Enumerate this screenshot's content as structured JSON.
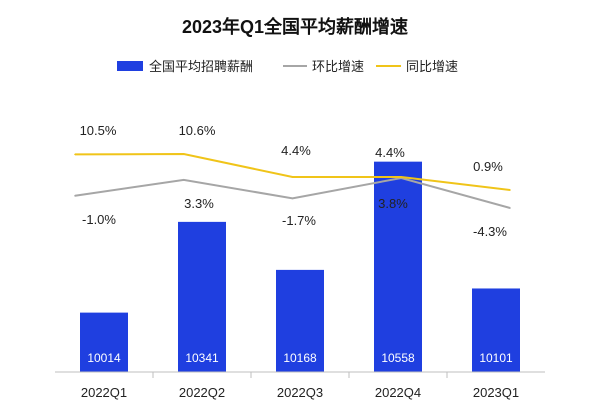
{
  "chart_data": {
    "type": "bar",
    "title": "2023年Q1全国平均薪酬增速",
    "categories": [
      "2022Q1",
      "2022Q2",
      "2022Q3",
      "2022Q4",
      "2023Q1"
    ],
    "series": [
      {
        "name": "全国平均招聘薪酬",
        "type": "bar",
        "values": [
          10014,
          10341,
          10168,
          10558,
          10101
        ],
        "color": "#1f3fe0"
      },
      {
        "name": "环比增速",
        "type": "line",
        "values": [
          -1.0,
          3.3,
          -1.7,
          3.8,
          -4.3
        ],
        "labels": [
          "-1.0%",
          "3.3%",
          "-1.7%",
          "3.8%",
          "-4.3%"
        ],
        "color": "#a6a6a6"
      },
      {
        "name": "同比增速",
        "type": "line",
        "values": [
          10.5,
          10.6,
          4.4,
          4.4,
          0.9
        ],
        "labels": [
          "10.5%",
          "10.6%",
          "4.4%",
          "4.4%",
          "0.9%"
        ],
        "color": "#f0c419"
      }
    ],
    "bar_ylim": [
      9800,
      10600
    ],
    "grid": false,
    "legend": "top"
  }
}
